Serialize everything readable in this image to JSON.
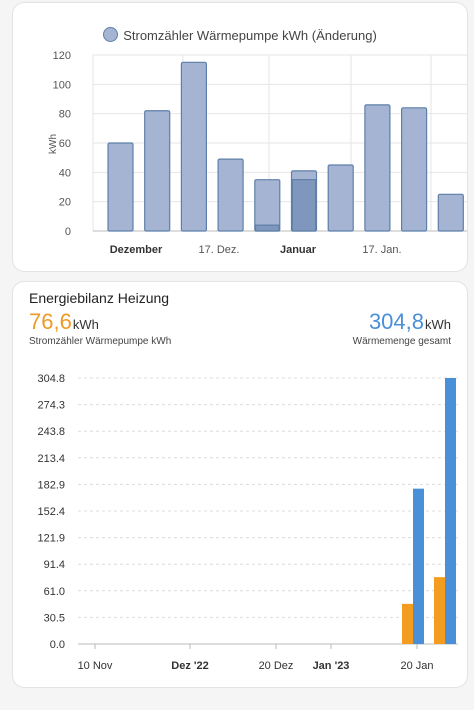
{
  "chart1": {
    "legend": "Stromzähler Wärmepumpe kWh (Änderung)",
    "ylabel": "kWh"
  },
  "card2": {
    "title": "Energiebilanz Heizung",
    "left_value": "76,6",
    "left_unit": "kWh",
    "left_label": "Stromzähler Wärmepumpe kWh",
    "right_value": "304,8",
    "right_unit": "kWh",
    "right_label": "Wärmemenge gesamt"
  },
  "colors": {
    "bar_fill": "#a5b4d3",
    "bar_stroke": "#5e7fa9",
    "bar_dark": "#7f97bd",
    "orange": "#f39c1f",
    "blue": "#4a90d9"
  },
  "chart_data": [
    {
      "type": "bar",
      "title": "",
      "ylabel": "kWh",
      "ylim": [
        0,
        120
      ],
      "yticks": [
        0,
        20,
        40,
        60,
        80,
        100,
        120
      ],
      "grid": true,
      "legend": "top",
      "x_ticks": [
        {
          "label": "Dezember",
          "bold": true
        },
        {
          "label": "17. Dez.",
          "bold": false
        },
        {
          "label": "Januar",
          "bold": true
        },
        {
          "label": "17. Jan.",
          "bold": false
        }
      ],
      "series": [
        {
          "name": "Stromzähler Wärmepumpe kWh (Änderung)",
          "values": [
            60,
            82,
            115,
            49,
            35,
            41,
            45,
            86,
            84,
            25
          ]
        }
      ],
      "overlay_values": [
        null,
        null,
        null,
        null,
        4,
        35,
        null,
        null,
        null,
        null
      ]
    },
    {
      "type": "bar",
      "title": "",
      "ylim": [
        0,
        304.8
      ],
      "yticks": [
        0.0,
        30.5,
        61.0,
        91.4,
        121.9,
        152.4,
        182.9,
        213.4,
        243.8,
        274.3,
        304.8
      ],
      "grid": true,
      "x_ticks": [
        {
          "label": "10 Nov",
          "bold": false
        },
        {
          "label": "Dez '22",
          "bold": true
        },
        {
          "label": "20 Dez",
          "bold": false
        },
        {
          "label": "Jan '23",
          "bold": true
        },
        {
          "label": "20 Jan",
          "bold": false
        }
      ],
      "groups": [
        {
          "electricity": 46,
          "heat": 178
        },
        {
          "electricity": 76.6,
          "heat": 304.8
        }
      ]
    }
  ]
}
